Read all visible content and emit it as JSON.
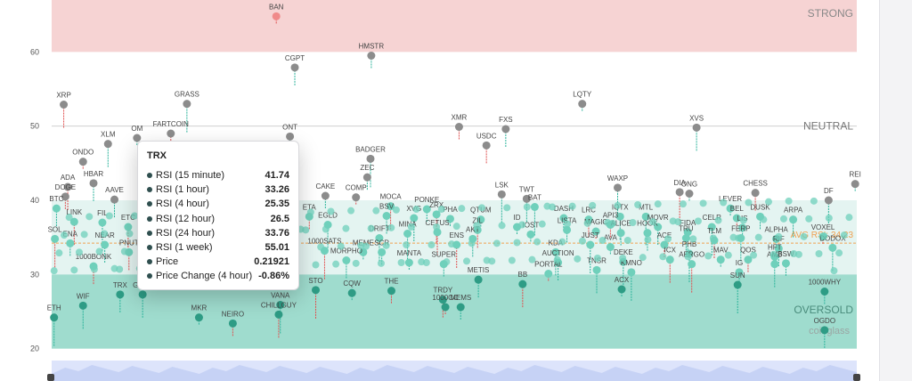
{
  "chart_data": {
    "type": "scatter",
    "y_ticks": [
      20,
      30,
      40,
      50,
      60
    ],
    "ylim": [
      19,
      67
    ],
    "zones": {
      "strong": {
        "label": "STRONG",
        "from": 60,
        "to": 67,
        "color": "#f6d3d3"
      },
      "neutral": {
        "label": "NEUTRAL",
        "at": 50
      },
      "upper_band": {
        "from": 30,
        "to": 40,
        "color": "#e4f4f1"
      },
      "oversold": {
        "label": "OVERSOLD",
        "from": 20,
        "to": 30,
        "color": "#9fdcce"
      }
    },
    "avg_label": "AVG RSI: 34.23",
    "avg_value": 34.23,
    "watermark": "coinglass",
    "labeled_points": [
      {
        "name": "BAN",
        "x": 0.279,
        "y": 64.8
      },
      {
        "name": "HMSTR",
        "x": 0.397,
        "y": 59.5
      },
      {
        "name": "CGPT",
        "x": 0.302,
        "y": 57.9
      },
      {
        "name": "XRP",
        "x": 0.015,
        "y": 52.9
      },
      {
        "name": "GRASS",
        "x": 0.168,
        "y": 53.0
      },
      {
        "name": "LQTY",
        "x": 0.659,
        "y": 53.0
      },
      {
        "name": "XMR",
        "x": 0.506,
        "y": 49.9
      },
      {
        "name": "FXS",
        "x": 0.564,
        "y": 49.6
      },
      {
        "name": "XVS",
        "x": 0.801,
        "y": 49.8
      },
      {
        "name": "FARTCOIN",
        "x": 0.148,
        "y": 49.0
      },
      {
        "name": "OM",
        "x": 0.106,
        "y": 48.4
      },
      {
        "name": "ONT",
        "x": 0.296,
        "y": 48.6
      },
      {
        "name": "USDC",
        "x": 0.54,
        "y": 47.4
      },
      {
        "name": "XLM",
        "x": 0.07,
        "y": 47.6
      },
      {
        "name": "BADGER",
        "x": 0.396,
        "y": 45.6
      },
      {
        "name": "ONDO",
        "x": 0.039,
        "y": 45.2
      },
      {
        "name": "ZEC",
        "x": 0.392,
        "y": 43.1
      },
      {
        "name": "HBAR",
        "x": 0.052,
        "y": 42.3
      },
      {
        "name": "ADA",
        "x": 0.02,
        "y": 41.8
      },
      {
        "name": "WAXP",
        "x": 0.703,
        "y": 41.7
      },
      {
        "name": "REI",
        "x": 0.998,
        "y": 42.2
      },
      {
        "name": "DOGE",
        "x": 0.017,
        "y": 40.5
      },
      {
        "name": "AAVE",
        "x": 0.078,
        "y": 40.1
      },
      {
        "name": "TWT",
        "x": 0.59,
        "y": 40.2
      },
      {
        "name": "DIA",
        "x": 0.78,
        "y": 41.1
      },
      {
        "name": "ONG",
        "x": 0.792,
        "y": 40.9
      },
      {
        "name": "CAKE",
        "x": 0.34,
        "y": 40.6
      },
      {
        "name": "CHESS",
        "x": 0.874,
        "y": 41.0
      },
      {
        "name": "DF",
        "x": 0.965,
        "y": 40.0
      },
      {
        "name": "LSK",
        "x": 0.559,
        "y": 40.8
      },
      {
        "name": "COMP",
        "x": 0.378,
        "y": 40.4
      },
      {
        "name": "PONKE",
        "x": 0.466,
        "y": 38.8
      },
      {
        "name": "BTC",
        "x": 0.006,
        "y": 38.9
      },
      {
        "name": "MOCA",
        "x": 0.421,
        "y": 39.2
      },
      {
        "name": "BAT",
        "x": 0.6,
        "y": 39.1
      },
      {
        "name": "LEVER",
        "x": 0.843,
        "y": 38.9
      },
      {
        "name": "ETA",
        "x": 0.32,
        "y": 37.8
      },
      {
        "name": "BSV",
        "x": 0.416,
        "y": 37.9
      },
      {
        "name": "XVG",
        "x": 0.45,
        "y": 37.6
      },
      {
        "name": "ZRX",
        "x": 0.478,
        "y": 38.1
      },
      {
        "name": "QTUM",
        "x": 0.533,
        "y": 37.4
      },
      {
        "name": "DASH",
        "x": 0.636,
        "y": 37.6
      },
      {
        "name": "LRC",
        "x": 0.667,
        "y": 37.4
      },
      {
        "name": "IOTX",
        "x": 0.706,
        "y": 37.8
      },
      {
        "name": "MTL",
        "x": 0.738,
        "y": 37.8
      },
      {
        "name": "BEL",
        "x": 0.851,
        "y": 37.6
      },
      {
        "name": "DUSK",
        "x": 0.88,
        "y": 37.8
      },
      {
        "name": "ARPA",
        "x": 0.921,
        "y": 37.4
      },
      {
        "name": "LINK",
        "x": 0.028,
        "y": 37.1
      },
      {
        "name": "FIL",
        "x": 0.063,
        "y": 37.0
      },
      {
        "name": "PHA",
        "x": 0.495,
        "y": 37.5
      },
      {
        "name": "API3",
        "x": 0.694,
        "y": 36.7
      },
      {
        "name": "MOVR",
        "x": 0.753,
        "y": 36.4
      },
      {
        "name": "EGLD",
        "x": 0.343,
        "y": 36.7
      },
      {
        "name": "ETC",
        "x": 0.095,
        "y": 36.4
      },
      {
        "name": "ID",
        "x": 0.578,
        "y": 36.4
      },
      {
        "name": "LISTA",
        "x": 0.64,
        "y": 36.0
      },
      {
        "name": "ZIL",
        "x": 0.529,
        "y": 36.0
      },
      {
        "name": "FIDA",
        "x": 0.79,
        "y": 35.7
      },
      {
        "name": "CELR",
        "x": 0.82,
        "y": 36.4
      },
      {
        "name": "MAGIC",
        "x": 0.676,
        "y": 35.8
      },
      {
        "name": "ALICE",
        "x": 0.707,
        "y": 35.6
      },
      {
        "name": "HOOK",
        "x": 0.74,
        "y": 35.6
      },
      {
        "name": "CETUS",
        "x": 0.479,
        "y": 35.7
      },
      {
        "name": "MINA",
        "x": 0.442,
        "y": 35.5
      },
      {
        "name": "LIS",
        "x": 0.858,
        "y": 36.3
      },
      {
        "name": "AVG RSI",
        "x": 0.93,
        "y": 35.6
      },
      {
        "name": "AKT",
        "x": 0.523,
        "y": 34.8
      },
      {
        "name": "DRIFT",
        "x": 0.407,
        "y": 34.9
      },
      {
        "name": "SOL",
        "x": 0.004,
        "y": 34.8
      },
      {
        "name": "IOST",
        "x": 0.595,
        "y": 35.4
      },
      {
        "name": "TRU",
        "x": 0.788,
        "y": 34.9
      },
      {
        "name": "TLM",
        "x": 0.823,
        "y": 34.6
      },
      {
        "name": "FERP",
        "x": 0.856,
        "y": 34.9
      },
      {
        "name": "ALPHA",
        "x": 0.9,
        "y": 34.8
      },
      {
        "name": "VOXEL",
        "x": 0.958,
        "y": 35.1
      },
      {
        "name": "ENA",
        "x": 0.023,
        "y": 34.2
      },
      {
        "name": "NEAR",
        "x": 0.066,
        "y": 34.0
      },
      {
        "name": "ENS",
        "x": 0.503,
        "y": 34.0
      },
      {
        "name": "JUST",
        "x": 0.669,
        "y": 34.0
      },
      {
        "name": "AVA",
        "x": 0.694,
        "y": 33.7
      },
      {
        "name": "ACE",
        "x": 0.761,
        "y": 34.0
      },
      {
        "name": "RIF",
        "x": 0.903,
        "y": 33.5
      },
      {
        "name": "DODOX",
        "x": 0.97,
        "y": 33.6
      },
      {
        "name": "1000SATS",
        "x": 0.339,
        "y": 33.2
      },
      {
        "name": "MEME",
        "x": 0.387,
        "y": 33.0
      },
      {
        "name": "SCR",
        "x": 0.41,
        "y": 33.0
      },
      {
        "name": "PNUT",
        "x": 0.096,
        "y": 33.0
      },
      {
        "name": "KDA",
        "x": 0.626,
        "y": 33.0
      },
      {
        "name": "PHB",
        "x": 0.792,
        "y": 32.8
      },
      {
        "name": "HFT",
        "x": 0.898,
        "y": 32.4
      },
      {
        "name": "BSW",
        "x": 0.912,
        "y": 31.5
      },
      {
        "name": "MORPHO",
        "x": 0.366,
        "y": 31.9
      },
      {
        "name": "ICX",
        "x": 0.768,
        "y": 32.0
      },
      {
        "name": "DEKE",
        "x": 0.71,
        "y": 31.7
      },
      {
        "name": "MAV",
        "x": 0.831,
        "y": 32.0
      },
      {
        "name": "QOS",
        "x": 0.865,
        "y": 32.0
      },
      {
        "name": "AUCTION",
        "x": 0.629,
        "y": 31.6
      },
      {
        "name": "AMB",
        "x": 0.898,
        "y": 31.4
      },
      {
        "name": "AERGO",
        "x": 0.795,
        "y": 31.4
      },
      {
        "name": "MANTA",
        "x": 0.444,
        "y": 31.6
      },
      {
        "name": "SUPER",
        "x": 0.487,
        "y": 31.4
      },
      {
        "name": "1000BONK",
        "x": 0.052,
        "y": 31.1
      },
      {
        "name": "TNSR",
        "x": 0.677,
        "y": 30.6
      },
      {
        "name": "KMNO",
        "x": 0.72,
        "y": 30.3
      },
      {
        "name": "PORTAL",
        "x": 0.617,
        "y": 30.1
      },
      {
        "name": "IG",
        "x": 0.854,
        "y": 30.3
      },
      {
        "name": "METIS",
        "x": 0.53,
        "y": 29.3
      },
      {
        "name": "BB",
        "x": 0.585,
        "y": 28.7
      },
      {
        "name": "SUN",
        "x": 0.852,
        "y": 28.6
      },
      {
        "name": "ACX",
        "x": 0.708,
        "y": 28.0
      },
      {
        "name": "THE",
        "x": 0.422,
        "y": 27.8
      },
      {
        "name": "TRX",
        "x": 0.085,
        "y": 27.3
      },
      {
        "name": "GOAT",
        "x": 0.113,
        "y": 27.3
      },
      {
        "name": "STO",
        "x": 0.328,
        "y": 27.9
      },
      {
        "name": "CQW",
        "x": 0.373,
        "y": 27.5
      },
      {
        "name": "1000WHY",
        "x": 0.96,
        "y": 27.7
      },
      {
        "name": "TRDY",
        "x": 0.486,
        "y": 26.6
      },
      {
        "name": "WIF",
        "x": 0.039,
        "y": 25.8
      },
      {
        "name": "VANA",
        "x": 0.284,
        "y": 25.9
      },
      {
        "name": "1000CC",
        "x": 0.489,
        "y": 25.6
      },
      {
        "name": "MEMS",
        "x": 0.508,
        "y": 25.6
      },
      {
        "name": "OVERSOLD",
        "x": 0.962,
        "y": 25.6
      },
      {
        "name": "CHILLGUY",
        "x": 0.282,
        "y": 24.6
      },
      {
        "name": "ETH",
        "x": 0.003,
        "y": 24.2
      },
      {
        "name": "MKR",
        "x": 0.183,
        "y": 24.2
      },
      {
        "name": "NEIRO",
        "x": 0.225,
        "y": 23.4
      },
      {
        "name": "OGDO",
        "x": 0.96,
        "y": 22.5
      }
    ],
    "tooltip": {
      "title": "TRX",
      "rows": [
        {
          "label": "RSI (15 minute)",
          "value": "41.74"
        },
        {
          "label": "RSI (1 hour)",
          "value": "33.26"
        },
        {
          "label": "RSI (4 hour)",
          "value": "25.35"
        },
        {
          "label": "RSI (12 hour)",
          "value": "26.5"
        },
        {
          "label": "RSI (24 hour)",
          "value": "33.76"
        },
        {
          "label": "RSI (1 week)",
          "value": "55.01"
        },
        {
          "label": "Price",
          "value": "0.21921"
        },
        {
          "label": "Price Change (4 hour)",
          "value": "-0.86%"
        }
      ]
    },
    "colors": {
      "strong_dot": "#f08a8a",
      "neutral_dot": "#8c8c8c",
      "band_dot": "#6fd0bb",
      "oversold_dot": "#2e9c85",
      "avg_line": "#f0a050",
      "stem_red": "#e05050",
      "stem_teal": "#2ab39a"
    }
  }
}
